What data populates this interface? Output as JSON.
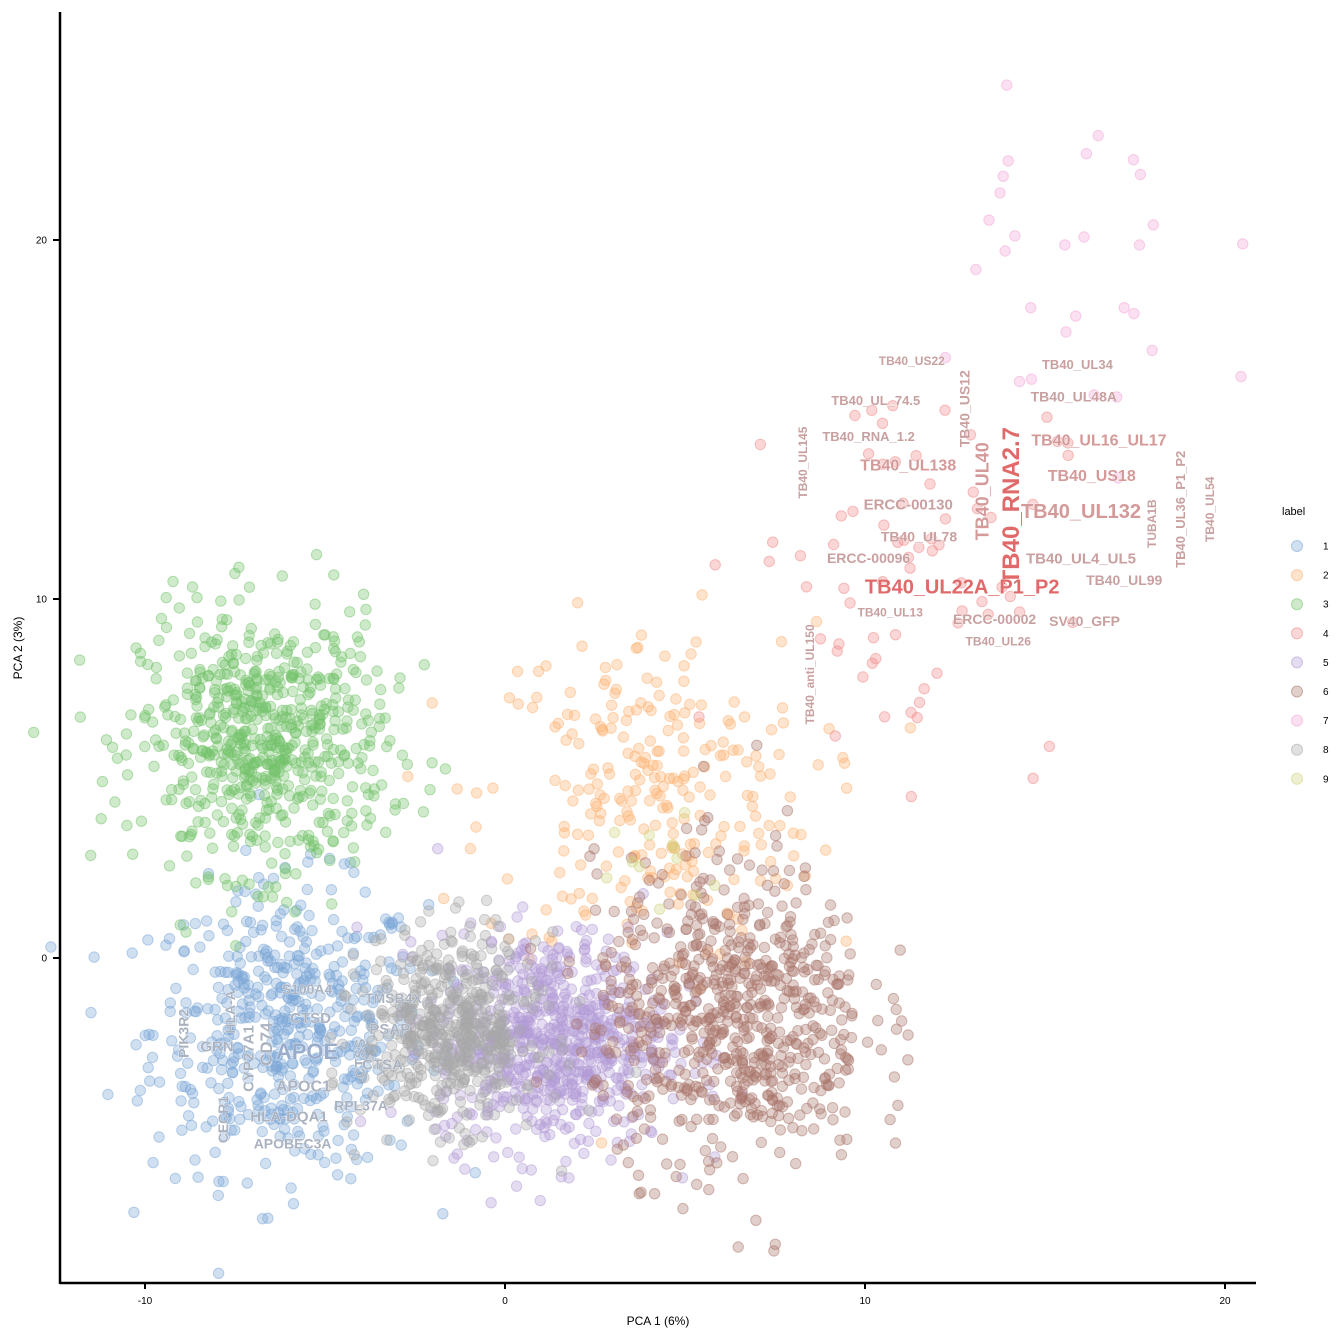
{
  "chart_data": {
    "type": "scatter",
    "title": "",
    "xlabel": "PCA 1 (6%)",
    "ylabel": "PCA 2 (3%)",
    "xlim": [
      -12.4,
      20.8
    ],
    "ylim": [
      -9.1,
      26.3
    ],
    "x_ticks": [
      -10,
      0,
      10,
      20
    ],
    "y_ticks": [
      0,
      10,
      20
    ],
    "x_tick_labels": [
      "-10",
      "0",
      "10",
      "20"
    ],
    "y_tick_labels": [
      "0",
      "10",
      "20"
    ],
    "grid": false,
    "legend": {
      "title": "label",
      "position": "right",
      "entries": [
        {
          "label": "1",
          "color": "#7aa6d6"
        },
        {
          "label": "2",
          "color": "#fdb271"
        },
        {
          "label": "3",
          "color": "#73c26a"
        },
        {
          "label": "4",
          "color": "#f08a8a"
        },
        {
          "label": "5",
          "color": "#b39bd6"
        },
        {
          "label": "6",
          "color": "#a9766b"
        },
        {
          "label": "7",
          "color": "#f2a6d8"
        },
        {
          "label": "8",
          "color": "#a8a8a8"
        },
        {
          "label": "9",
          "color": "#cfd37a"
        }
      ]
    },
    "series": [
      {
        "name": "1",
        "center": [
          -6.0,
          -2.0
        ],
        "spread": [
          1.9,
          2.0
        ],
        "n": 520
      },
      {
        "name": "2",
        "center": [
          4.0,
          4.5
        ],
        "spread": [
          2.3,
          2.4
        ],
        "n": 260
      },
      {
        "name": "3",
        "center": [
          -6.7,
          6.0
        ],
        "spread": [
          1.7,
          1.8
        ],
        "n": 650
      },
      {
        "name": "4",
        "center": [
          11.0,
          11.0
        ],
        "spread": [
          2.2,
          2.8
        ],
        "n": 70
      },
      {
        "name": "5",
        "center": [
          1.3,
          -2.3
        ],
        "spread": [
          1.6,
          1.5
        ],
        "n": 700
      },
      {
        "name": "6",
        "center": [
          6.3,
          -1.6
        ],
        "spread": [
          1.9,
          2.1
        ],
        "n": 700
      },
      {
        "name": "7",
        "center": [
          15.5,
          18.5
        ],
        "spread": [
          2.2,
          3.5
        ],
        "n": 30
      },
      {
        "name": "8",
        "center": [
          -1.5,
          -2.0
        ],
        "spread": [
          1.2,
          1.3
        ],
        "n": 520
      },
      {
        "name": "9",
        "center": [
          4.5,
          2.5
        ],
        "spread": [
          1.2,
          1.2
        ],
        "n": 12
      }
    ],
    "gene_labels": [
      {
        "text": "TB40_US22",
        "x": 11.3,
        "y": 16.6,
        "size": 12,
        "color": "#c9a0a0",
        "rotate": 0
      },
      {
        "text": "TB40_UL34",
        "x": 15.9,
        "y": 16.5,
        "size": 13,
        "color": "#c9a0a0",
        "rotate": 0
      },
      {
        "text": "TB40_US12",
        "x": 12.8,
        "y": 15.3,
        "size": 14,
        "color": "#c9a0a0",
        "rotate": -90
      },
      {
        "text": "TB40_UL_74.5",
        "x": 10.3,
        "y": 15.5,
        "size": 13,
        "color": "#c9a0a0",
        "rotate": 0
      },
      {
        "text": "TB40_UL48A",
        "x": 15.8,
        "y": 15.6,
        "size": 14,
        "color": "#c9a0a0",
        "rotate": 0
      },
      {
        "text": "TB40_RNA_1.2",
        "x": 10.1,
        "y": 14.5,
        "size": 13,
        "color": "#c9a0a0",
        "rotate": 0
      },
      {
        "text": "TB40_UL16_UL17",
        "x": 16.5,
        "y": 14.4,
        "size": 16,
        "color": "#d49a9a",
        "rotate": 0
      },
      {
        "text": "TB40_UL145",
        "x": 8.3,
        "y": 13.8,
        "size": 12,
        "color": "#c9a0a0",
        "rotate": -90
      },
      {
        "text": "TB40_UL40",
        "x": 13.3,
        "y": 13.0,
        "size": 18,
        "color": "#d49a9a",
        "rotate": -90
      },
      {
        "text": "TB40_RNA2.7",
        "x": 14.1,
        "y": 12.6,
        "size": 24,
        "color": "#e06a6a",
        "rotate": -90
      },
      {
        "text": "TB40_UL138",
        "x": 11.2,
        "y": 13.7,
        "size": 16,
        "color": "#d49a9a",
        "rotate": 0
      },
      {
        "text": "TB40_US18",
        "x": 16.3,
        "y": 13.4,
        "size": 16,
        "color": "#d49a9a",
        "rotate": 0
      },
      {
        "text": "TB40_UL36_P1_P2",
        "x": 18.8,
        "y": 12.5,
        "size": 13,
        "color": "#c9a0a0",
        "rotate": -90
      },
      {
        "text": "TB40_UL54",
        "x": 19.6,
        "y": 12.5,
        "size": 12,
        "color": "#c9a0a0",
        "rotate": -90
      },
      {
        "text": "TUBA1B",
        "x": 18.0,
        "y": 12.1,
        "size": 12,
        "color": "#c9a0a0",
        "rotate": -90
      },
      {
        "text": "ERCC-00130",
        "x": 11.2,
        "y": 12.6,
        "size": 15,
        "color": "#c9a0a0",
        "rotate": 0
      },
      {
        "text": "TB40_UL132",
        "x": 16.0,
        "y": 12.4,
        "size": 20,
        "color": "#d49a9a",
        "rotate": 0
      },
      {
        "text": "TB40_UL78",
        "x": 11.5,
        "y": 11.7,
        "size": 14,
        "color": "#c9a0a0",
        "rotate": 0
      },
      {
        "text": "TB40_UL4_UL5",
        "x": 16.0,
        "y": 11.1,
        "size": 15,
        "color": "#c9a0a0",
        "rotate": 0
      },
      {
        "text": "ERCC-00096",
        "x": 10.1,
        "y": 11.1,
        "size": 14,
        "color": "#c9a0a0",
        "rotate": 0
      },
      {
        "text": "TB40_UL22A_P1_P2",
        "x": 12.7,
        "y": 10.3,
        "size": 20,
        "color": "#e06a6a",
        "rotate": 0
      },
      {
        "text": "TB40_UL99",
        "x": 17.2,
        "y": 10.5,
        "size": 14,
        "color": "#c9a0a0",
        "rotate": 0
      },
      {
        "text": "TB40_UL13",
        "x": 10.7,
        "y": 9.6,
        "size": 12,
        "color": "#c9a0a0",
        "rotate": 0
      },
      {
        "text": "ERCC-00002",
        "x": 13.6,
        "y": 9.4,
        "size": 14,
        "color": "#c9a0a0",
        "rotate": 0
      },
      {
        "text": "SV40_GFP",
        "x": 16.1,
        "y": 9.35,
        "size": 14,
        "color": "#c9a0a0",
        "rotate": 0
      },
      {
        "text": "TB40_UL26",
        "x": 13.7,
        "y": 8.8,
        "size": 12,
        "color": "#c9a0a0",
        "rotate": 0
      },
      {
        "text": "TB40_anti_UL150",
        "x": 8.5,
        "y": 7.9,
        "size": 12,
        "color": "#c9a0a0",
        "rotate": -90
      },
      {
        "text": "S100A4",
        "x": -5.5,
        "y": -0.9,
        "size": 14,
        "color": "#aab2c0",
        "rotate": 0
      },
      {
        "text": "TMSB4X",
        "x": -3.1,
        "y": -1.15,
        "size": 14,
        "color": "#aab2c0",
        "rotate": 0
      },
      {
        "text": "HLA-A",
        "x": -7.6,
        "y": -1.5,
        "size": 14,
        "color": "#aab2c0",
        "rotate": -90
      },
      {
        "text": "CTSD",
        "x": -5.4,
        "y": -1.7,
        "size": 15,
        "color": "#aab2c0",
        "rotate": 0
      },
      {
        "text": "PSAP",
        "x": -3.2,
        "y": -2.0,
        "size": 15,
        "color": "#aab2c0",
        "rotate": 0
      },
      {
        "text": "PIK3R2",
        "x": -8.9,
        "y": -2.1,
        "size": 14,
        "color": "#aab2c0",
        "rotate": -90
      },
      {
        "text": "GRN",
        "x": -8.0,
        "y": -2.5,
        "size": 15,
        "color": "#aab2c0",
        "rotate": 0
      },
      {
        "text": "CD74",
        "x": -6.6,
        "y": -2.4,
        "size": 17,
        "color": "#aab2c0",
        "rotate": -90
      },
      {
        "text": "CYP27A1",
        "x": -7.1,
        "y": -2.8,
        "size": 15,
        "color": "#aab2c0",
        "rotate": -90
      },
      {
        "text": "APOE",
        "x": -5.5,
        "y": -2.65,
        "size": 22,
        "color": "#9aaccc",
        "rotate": 0
      },
      {
        "text": "CTSS",
        "x": -4.0,
        "y": -2.8,
        "size": 15,
        "color": "#aab2c0",
        "rotate": -90
      },
      {
        "text": "CTSA",
        "x": -3.4,
        "y": -3.0,
        "size": 15,
        "color": "#aab2c0",
        "rotate": 0
      },
      {
        "text": "APOC1",
        "x": -5.6,
        "y": -3.6,
        "size": 16,
        "color": "#aab2c0",
        "rotate": 0
      },
      {
        "text": "CECR1",
        "x": -7.8,
        "y": -4.5,
        "size": 14,
        "color": "#aab2c0",
        "rotate": -90
      },
      {
        "text": "RPL37A",
        "x": -4.0,
        "y": -4.15,
        "size": 14,
        "color": "#aab2c0",
        "rotate": 0
      },
      {
        "text": "HLA-DQA1",
        "x": -6.0,
        "y": -4.45,
        "size": 15,
        "color": "#aab2c0",
        "rotate": 0
      },
      {
        "text": "APOBEC3A",
        "x": -5.9,
        "y": -5.2,
        "size": 14,
        "color": "#aab2c0",
        "rotate": 0
      }
    ]
  }
}
